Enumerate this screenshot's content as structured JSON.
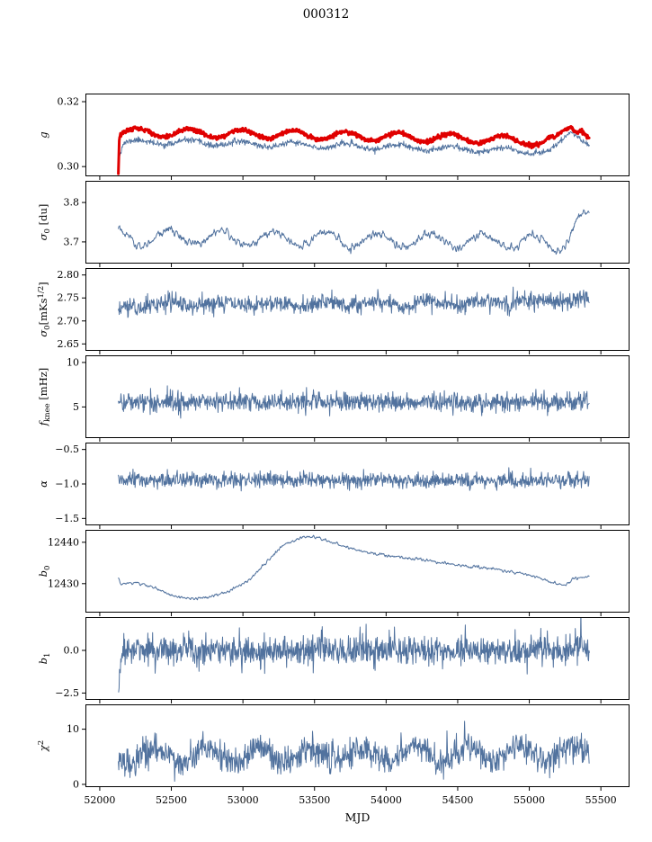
{
  "figure": {
    "title": "000312",
    "xlabel": "MJD",
    "xlim": [
      51900,
      55700
    ],
    "xticks": [
      52000,
      52500,
      53000,
      53500,
      54000,
      54500,
      55000,
      55500
    ],
    "xtick_labels": [
      "52000",
      "52500",
      "53000",
      "53500",
      "54000",
      "54500",
      "55000",
      "55500"
    ],
    "background": "#ffffff",
    "axis_color": "#000000",
    "blue": "#51729e",
    "red": "#e00000"
  },
  "chart_data": [
    {
      "type": "line",
      "name": "g",
      "ylabel": "g",
      "ylabel_parts": [
        {
          "t": "g",
          "style": "italic"
        }
      ],
      "ylim": [
        0.297,
        0.3225
      ],
      "yticks": [
        {
          "v": 0.3,
          "t": "0.30"
        },
        {
          "v": 0.32,
          "t": "0.32"
        }
      ],
      "series": [
        {
          "name": "g-thin-blue",
          "color": "#51729e",
          "width": 0.9,
          "seed": 11,
          "step": 3,
          "noise": 0.00045,
          "smooth": 0,
          "osc": {
            "amp": 0.0008,
            "period": 365,
            "phase": 52260
          },
          "trend": [
            [
              52140,
              0.3042
            ],
            [
              52165,
              0.3072
            ],
            [
              52400,
              0.3076
            ],
            [
              53400,
              0.3066
            ],
            [
              54400,
              0.3056
            ],
            [
              55000,
              0.3049
            ],
            [
              55130,
              0.3043
            ],
            [
              55200,
              0.3062
            ],
            [
              55290,
              0.311
            ],
            [
              55340,
              0.31
            ],
            [
              55420,
              0.3068
            ]
          ]
        },
        {
          "name": "g-thick-red",
          "color": "#e00000",
          "width": 3,
          "seed": 12,
          "step": 3,
          "noise": 0.0003,
          "smooth": 0,
          "osc": {
            "amp": 0.0013,
            "period": 365,
            "phase": 52260
          },
          "trend": [
            [
              52130,
              0.2982
            ],
            [
              52137,
              0.3098
            ],
            [
              52160,
              0.3106
            ],
            [
              52500,
              0.3104
            ],
            [
              53400,
              0.3098
            ],
            [
              54400,
              0.3088
            ],
            [
              55000,
              0.308
            ],
            [
              55100,
              0.3073
            ],
            [
              55145,
              0.3085
            ],
            [
              55175,
              0.3076
            ],
            [
              55235,
              0.3103
            ],
            [
              55290,
              0.3126
            ],
            [
              55330,
              0.3116
            ],
            [
              55365,
              0.3124
            ],
            [
              55420,
              0.3094
            ]
          ]
        }
      ]
    },
    {
      "type": "line",
      "name": "sigma0-du",
      "ylabel": "σ0 [du]",
      "ylabel_parts": [
        {
          "t": "σ",
          "style": "italic"
        },
        {
          "t": "0",
          "style": "sub"
        },
        {
          "t": " [du]"
        }
      ],
      "ylim": [
        3.645,
        3.855
      ],
      "yticks": [
        {
          "v": 3.7,
          "t": "3.7"
        },
        {
          "v": 3.8,
          "t": "3.8"
        }
      ],
      "series": [
        {
          "name": "sigma0-du",
          "color": "#51729e",
          "width": 1,
          "seed": 21,
          "step": 3,
          "noise": 0.009,
          "smooth": 1,
          "osc": {
            "amp": 0.018,
            "period": 365,
            "phase": 52480
          },
          "trend": [
            [
              52130,
              3.728
            ],
            [
              52150,
              3.715
            ],
            [
              52250,
              3.705
            ],
            [
              52400,
              3.712
            ],
            [
              52700,
              3.712
            ],
            [
              53200,
              3.708
            ],
            [
              54000,
              3.705
            ],
            [
              54800,
              3.702
            ],
            [
              55080,
              3.697
            ],
            [
              55160,
              3.69
            ],
            [
              55230,
              3.702
            ],
            [
              55300,
              3.732
            ],
            [
              55360,
              3.758
            ],
            [
              55420,
              3.76
            ]
          ]
        }
      ]
    },
    {
      "type": "line",
      "name": "sigma0-mks",
      "ylabel": "σ0[mKs1/2]",
      "ylabel_parts": [
        {
          "t": "σ",
          "style": "italic"
        },
        {
          "t": "0",
          "style": "sub"
        },
        {
          "t": "[mKs"
        },
        {
          "t": "1/2",
          "style": "sup"
        },
        {
          "t": "]"
        }
      ],
      "ylim": [
        2.635,
        2.815
      ],
      "yticks": [
        {
          "v": 2.65,
          "t": "2.65"
        },
        {
          "v": 2.7,
          "t": "2.70"
        },
        {
          "v": 2.75,
          "t": "2.75"
        },
        {
          "v": 2.8,
          "t": "2.80"
        }
      ],
      "series": [
        {
          "name": "sigma0-mks",
          "color": "#51729e",
          "width": 1,
          "seed": 31,
          "step": 3,
          "noise": 0.0095,
          "smooth": 0,
          "osc": {
            "amp": 0.005,
            "period": 365,
            "phase": 52480
          },
          "trend": [
            [
              52130,
              2.714
            ],
            [
              52170,
              2.73
            ],
            [
              52300,
              2.736
            ],
            [
              53000,
              2.737
            ],
            [
              54000,
              2.738
            ],
            [
              54800,
              2.74
            ],
            [
              55200,
              2.744
            ],
            [
              55330,
              2.747
            ],
            [
              55420,
              2.74
            ]
          ]
        }
      ]
    },
    {
      "type": "line",
      "name": "f-knee",
      "ylabel": "fknee [mHz]",
      "ylabel_parts": [
        {
          "t": "f",
          "style": "italic"
        },
        {
          "t": "knee",
          "style": "sub"
        },
        {
          "t": " [mHz]"
        }
      ],
      "ylim": [
        1.5,
        10.8
      ],
      "yticks": [
        {
          "v": 5,
          "t": "5"
        },
        {
          "v": 10,
          "t": "10"
        }
      ],
      "series": [
        {
          "name": "f-knee",
          "color": "#51729e",
          "width": 1,
          "seed": 41,
          "step": 3,
          "noise": 0.55,
          "smooth": 0,
          "trend": [
            [
              52130,
              5.95
            ],
            [
              52160,
              5.55
            ],
            [
              53000,
              5.6
            ],
            [
              54000,
              5.55
            ],
            [
              55000,
              5.55
            ],
            [
              55420,
              5.65
            ]
          ]
        }
      ]
    },
    {
      "type": "line",
      "name": "alpha",
      "ylabel": "α",
      "ylabel_parts": [
        {
          "t": "α",
          "style": "italic"
        }
      ],
      "ylim": [
        -1.6,
        -0.4
      ],
      "yticks": [
        {
          "v": -0.5,
          "t": "−0.5"
        },
        {
          "v": -1.0,
          "t": "−1.0"
        },
        {
          "v": -1.5,
          "t": "−1.5"
        }
      ],
      "series": [
        {
          "name": "alpha",
          "color": "#51729e",
          "width": 1,
          "seed": 51,
          "step": 3,
          "noise": 0.055,
          "smooth": 0,
          "trend": [
            [
              52130,
              -0.97
            ],
            [
              52200,
              -0.945
            ],
            [
              53000,
              -0.95
            ],
            [
              54000,
              -0.95
            ],
            [
              55420,
              -0.945
            ]
          ]
        }
      ]
    },
    {
      "type": "line",
      "name": "b0",
      "ylabel": "b0",
      "ylabel_parts": [
        {
          "t": "b",
          "style": "italic"
        },
        {
          "t": "0",
          "style": "sub"
        }
      ],
      "ylim": [
        12423,
        12443
      ],
      "yticks": [
        {
          "v": 12430,
          "t": "12430"
        },
        {
          "v": 12440,
          "t": "12440"
        }
      ],
      "series": [
        {
          "name": "b0",
          "color": "#51729e",
          "width": 1,
          "seed": 61,
          "step": 3,
          "noise": 0.3,
          "smooth": 1,
          "trend": [
            [
              52130,
              12431.5
            ],
            [
              52150,
              12429.8
            ],
            [
              52250,
              12430.3
            ],
            [
              52350,
              12429.4
            ],
            [
              52500,
              12427.3
            ],
            [
              52620,
              12426.3
            ],
            [
              52750,
              12426.6
            ],
            [
              52900,
              12428.0
            ],
            [
              53050,
              12431.0
            ],
            [
              53200,
              12436.5
            ],
            [
              53300,
              12439.8
            ],
            [
              53400,
              12441.0
            ],
            [
              53480,
              12441.4
            ],
            [
              53600,
              12440.2
            ],
            [
              53700,
              12439.0
            ],
            [
              53900,
              12437.3
            ],
            [
              54100,
              12436.3
            ],
            [
              54300,
              12435.6
            ],
            [
              54500,
              12434.4
            ],
            [
              54700,
              12433.8
            ],
            [
              54900,
              12432.8
            ],
            [
              55050,
              12431.7
            ],
            [
              55150,
              12430.3
            ],
            [
              55250,
              12429.7
            ],
            [
              55310,
              12431.2
            ],
            [
              55420,
              12431.8
            ]
          ]
        }
      ]
    },
    {
      "type": "line",
      "name": "b1",
      "ylabel": "b1",
      "ylabel_parts": [
        {
          "t": "b",
          "style": "italic"
        },
        {
          "t": "1",
          "style": "sub"
        }
      ],
      "ylim": [
        -2.9,
        1.95
      ],
      "yticks": [
        {
          "v": 0.0,
          "t": "0.0"
        },
        {
          "v": -2.5,
          "t": "−2.5"
        }
      ],
      "series": [
        {
          "name": "b1",
          "color": "#51729e",
          "width": 1,
          "seed": 71,
          "step": 3,
          "noise": 0.45,
          "smooth": 0,
          "trend": [
            [
              52132,
              -2.62
            ],
            [
              52140,
              -1.0
            ],
            [
              52152,
              -0.05
            ],
            [
              52300,
              0.02
            ],
            [
              53500,
              0.0
            ],
            [
              54800,
              0.02
            ],
            [
              55340,
              0.0
            ],
            [
              55352,
              0.1
            ],
            [
              55360,
              1.5
            ],
            [
              55368,
              0.2
            ],
            [
              55420,
              0.05
            ]
          ]
        }
      ]
    },
    {
      "type": "line",
      "name": "chi2",
      "ylabel": "χ2",
      "ylabel_parts": [
        {
          "t": "χ",
          "style": "italic"
        },
        {
          "t": "2",
          "style": "sup"
        }
      ],
      "ylim": [
        -0.5,
        14.5
      ],
      "yticks": [
        {
          "v": 0,
          "t": "0"
        },
        {
          "v": 10,
          "t": "10"
        }
      ],
      "series": [
        {
          "name": "chi2",
          "color": "#51729e",
          "width": 1,
          "seed": 81,
          "step": 3,
          "noise": 1.3,
          "smooth": 0,
          "osc": {
            "amp": 1.25,
            "period": 365,
            "phase": 52380
          },
          "trend": [
            [
              52130,
              4.9
            ],
            [
              52300,
              5.3
            ],
            [
              53000,
              5.4
            ],
            [
              54000,
              5.5
            ],
            [
              55000,
              5.6
            ],
            [
              55420,
              6.0
            ]
          ]
        }
      ]
    }
  ]
}
